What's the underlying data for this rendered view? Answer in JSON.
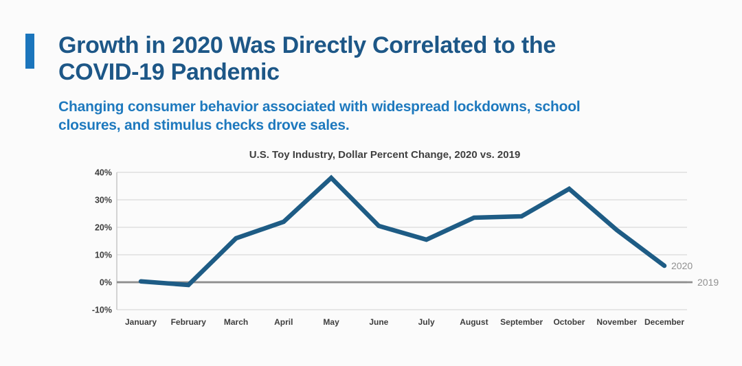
{
  "header": {
    "title_lines": [
      "Growth in 2020 Was Directly Correlated to the",
      "COVID-19 Pandemic"
    ],
    "subtitle_lines": [
      "Changing consumer behavior associated with widespread lockdowns, school",
      "closures, and stimulus checks drove sales."
    ],
    "accent_color": "#1b75bc",
    "title_color": "#1d5787",
    "subtitle_color": "#1e79be"
  },
  "chart_data": {
    "type": "line",
    "title": "U.S. Toy Industry, Dollar Percent Change, 2020 vs. 2019",
    "categories": [
      "January",
      "February",
      "March",
      "April",
      "May",
      "June",
      "July",
      "August",
      "September",
      "October",
      "November",
      "December"
    ],
    "series": [
      {
        "name": "2020",
        "values": [
          0.3,
          -1,
          16,
          22,
          38,
          20.5,
          15.5,
          23.5,
          24,
          34,
          19,
          6
        ],
        "color": "#1e5c85"
      },
      {
        "name": "2019",
        "values": [
          0,
          0,
          0,
          0,
          0,
          0,
          0,
          0,
          0,
          0,
          0,
          0
        ],
        "color": "#8e8e8e",
        "note": "baseline"
      }
    ],
    "xlabel": "",
    "ylabel": "",
    "ylim": [
      -10,
      40
    ],
    "yticks": [
      40,
      30,
      20,
      10,
      0,
      -10
    ],
    "ytick_format": "percent",
    "grid": true,
    "legend_position": "line-end-labels",
    "colors": {
      "tick_label": "#3d3d3d",
      "grid": "#d9d9d9",
      "zero_line": "#8e8e8e",
      "axis_border": "#c6c6c6",
      "end_label": "#909090",
      "chart_title": "#3f3f3f"
    }
  }
}
